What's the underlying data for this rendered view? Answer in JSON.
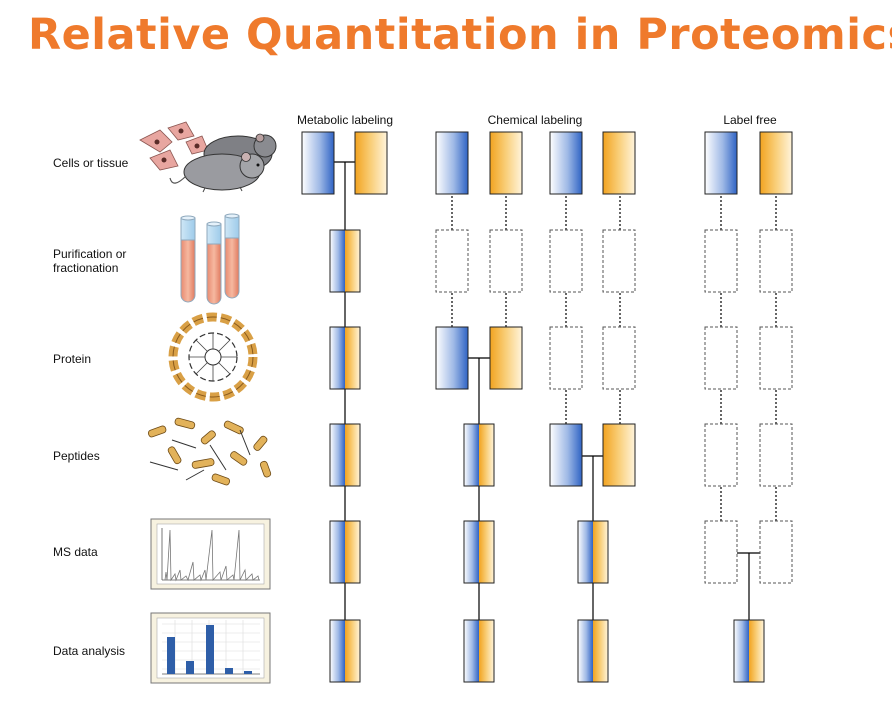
{
  "title": "Relative Quantitation in Proteomics",
  "steps": {
    "cells": "Cells or tissue",
    "purification": "Purification or fractionation",
    "protein": "Protein",
    "peptides": "Peptides",
    "ms": "MS data",
    "analysis": "Data analysis"
  },
  "columns": {
    "metabolic": "Metabolic labeling",
    "chemical": "Chemical labeling",
    "labelfree": "Label free"
  },
  "colors": {
    "title": "#ef7a2c",
    "blue": "#3f6fc0",
    "orange": "#f3a528"
  }
}
